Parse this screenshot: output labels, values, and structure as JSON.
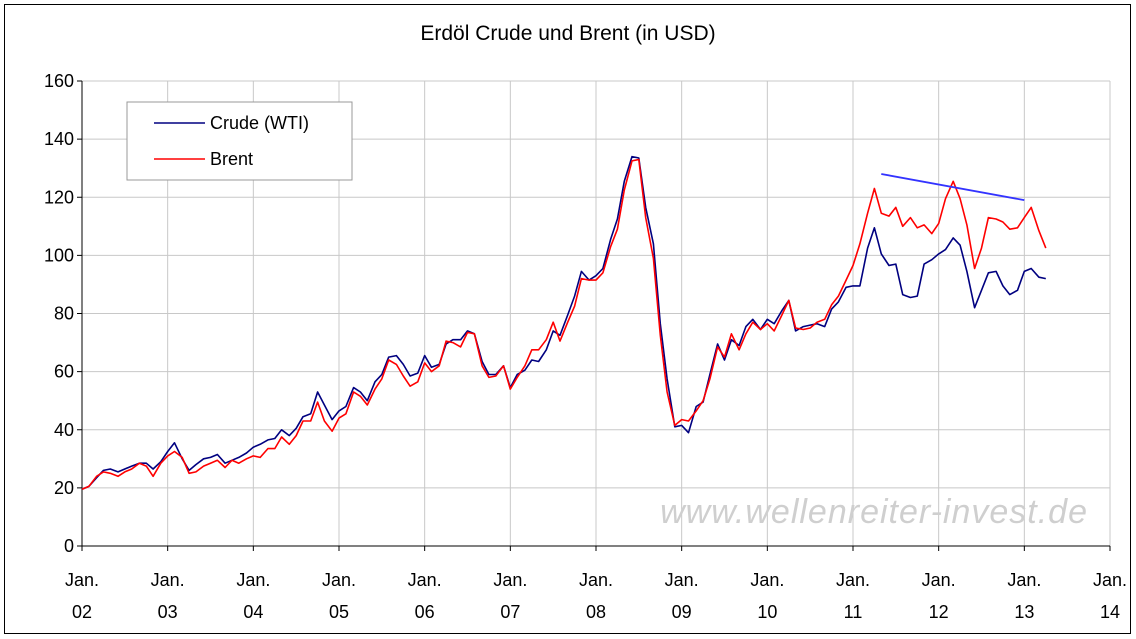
{
  "chart_data": {
    "type": "line",
    "title": "Erdöl Crude und Brent (in USD)",
    "xlabel": "",
    "ylabel": "",
    "ylim": [
      0,
      160
    ],
    "yticks": [
      0,
      20,
      40,
      60,
      80,
      100,
      120,
      140,
      160
    ],
    "xlim": [
      2002,
      2014
    ],
    "xtick_labels": [
      {
        "year": 2002,
        "top": "Jan.",
        "bottom": "02"
      },
      {
        "year": 2003,
        "top": "Jan.",
        "bottom": "03"
      },
      {
        "year": 2004,
        "top": "Jan.",
        "bottom": "04"
      },
      {
        "year": 2005,
        "top": "Jan.",
        "bottom": "05"
      },
      {
        "year": 2006,
        "top": "Jan.",
        "bottom": "06"
      },
      {
        "year": 2007,
        "top": "Jan.",
        "bottom": "07"
      },
      {
        "year": 2008,
        "top": "Jan.",
        "bottom": "08"
      },
      {
        "year": 2009,
        "top": "Jan.",
        "bottom": "09"
      },
      {
        "year": 2010,
        "top": "Jan.",
        "bottom": "10"
      },
      {
        "year": 2011,
        "top": "Jan.",
        "bottom": "11"
      },
      {
        "year": 2012,
        "top": "Jan.",
        "bottom": "12"
      },
      {
        "year": 2013,
        "top": "Jan.",
        "bottom": "13"
      },
      {
        "year": 2014,
        "top": "Jan.",
        "bottom": "14"
      }
    ],
    "grid": true,
    "legend_position": "top-left",
    "series": [
      {
        "name": "Crude (WTI)",
        "color": "#000080",
        "points": [
          [
            2002.0,
            19.5
          ],
          [
            2002.08,
            20.5
          ],
          [
            2002.17,
            23.5
          ],
          [
            2002.25,
            26
          ],
          [
            2002.33,
            26.5
          ],
          [
            2002.42,
            25.5
          ],
          [
            2002.5,
            26.5
          ],
          [
            2002.58,
            27.5
          ],
          [
            2002.67,
            28.5
          ],
          [
            2002.75,
            28.5
          ],
          [
            2002.83,
            26.5
          ],
          [
            2002.92,
            29
          ],
          [
            2003.0,
            32.5
          ],
          [
            2003.08,
            35.5
          ],
          [
            2003.17,
            30
          ],
          [
            2003.25,
            26
          ],
          [
            2003.33,
            28
          ],
          [
            2003.42,
            30
          ],
          [
            2003.5,
            30.5
          ],
          [
            2003.58,
            31.5
          ],
          [
            2003.67,
            28.5
          ],
          [
            2003.75,
            29.5
          ],
          [
            2003.83,
            30.5
          ],
          [
            2003.92,
            32
          ],
          [
            2004.0,
            34
          ],
          [
            2004.08,
            35
          ],
          [
            2004.17,
            36.5
          ],
          [
            2004.25,
            37
          ],
          [
            2004.33,
            40
          ],
          [
            2004.42,
            38
          ],
          [
            2004.5,
            40.5
          ],
          [
            2004.58,
            44.5
          ],
          [
            2004.67,
            45.5
          ],
          [
            2004.75,
            53
          ],
          [
            2004.83,
            48.5
          ],
          [
            2004.92,
            43.5
          ],
          [
            2005.0,
            46.5
          ],
          [
            2005.08,
            48
          ],
          [
            2005.17,
            54.5
          ],
          [
            2005.25,
            53
          ],
          [
            2005.33,
            50
          ],
          [
            2005.42,
            56.5
          ],
          [
            2005.5,
            59
          ],
          [
            2005.58,
            65
          ],
          [
            2005.67,
            65.5
          ],
          [
            2005.75,
            62.5
          ],
          [
            2005.83,
            58.5
          ],
          [
            2005.92,
            59.5
          ],
          [
            2006.0,
            65.5
          ],
          [
            2006.08,
            61.5
          ],
          [
            2006.17,
            62.5
          ],
          [
            2006.25,
            69.5
          ],
          [
            2006.33,
            71
          ],
          [
            2006.42,
            71
          ],
          [
            2006.5,
            74
          ],
          [
            2006.58,
            73
          ],
          [
            2006.67,
            63.5
          ],
          [
            2006.75,
            59
          ],
          [
            2006.83,
            59
          ],
          [
            2006.92,
            62
          ],
          [
            2007.0,
            54.5
          ],
          [
            2007.08,
            59
          ],
          [
            2007.17,
            60.5
          ],
          [
            2007.25,
            64
          ],
          [
            2007.33,
            63.5
          ],
          [
            2007.42,
            67.5
          ],
          [
            2007.5,
            74
          ],
          [
            2007.58,
            72.5
          ],
          [
            2007.67,
            79.5
          ],
          [
            2007.75,
            86
          ],
          [
            2007.83,
            94.5
          ],
          [
            2007.92,
            91.5
          ],
          [
            2008.0,
            93
          ],
          [
            2008.08,
            95.5
          ],
          [
            2008.17,
            105.5
          ],
          [
            2008.25,
            112.5
          ],
          [
            2008.33,
            125.5
          ],
          [
            2008.42,
            134
          ],
          [
            2008.5,
            133.5
          ],
          [
            2008.58,
            116.5
          ],
          [
            2008.67,
            104
          ],
          [
            2008.75,
            76.5
          ],
          [
            2008.83,
            57.5
          ],
          [
            2008.92,
            41
          ],
          [
            2009.0,
            41.5
          ],
          [
            2009.08,
            39
          ],
          [
            2009.17,
            48
          ],
          [
            2009.25,
            49.5
          ],
          [
            2009.33,
            59
          ],
          [
            2009.42,
            69.5
          ],
          [
            2009.5,
            64
          ],
          [
            2009.58,
            71
          ],
          [
            2009.67,
            69
          ],
          [
            2009.75,
            75.5
          ],
          [
            2009.83,
            78
          ],
          [
            2009.92,
            74.5
          ],
          [
            2010.0,
            78
          ],
          [
            2010.08,
            76.5
          ],
          [
            2010.17,
            81
          ],
          [
            2010.25,
            84.5
          ],
          [
            2010.33,
            74
          ],
          [
            2010.42,
            75.5
          ],
          [
            2010.5,
            76
          ],
          [
            2010.58,
            76.5
          ],
          [
            2010.67,
            75.5
          ],
          [
            2010.75,
            81.5
          ],
          [
            2010.83,
            84
          ],
          [
            2010.92,
            89
          ],
          [
            2011.0,
            89.5
          ],
          [
            2011.08,
            89.5
          ],
          [
            2011.17,
            102.5
          ],
          [
            2011.25,
            109.5
          ],
          [
            2011.33,
            100.5
          ],
          [
            2011.42,
            96.5
          ],
          [
            2011.5,
            97
          ],
          [
            2011.58,
            86.5
          ],
          [
            2011.67,
            85.5
          ],
          [
            2011.75,
            86
          ],
          [
            2011.83,
            97
          ],
          [
            2011.92,
            98.5
          ],
          [
            2012.0,
            100.5
          ],
          [
            2012.08,
            102
          ],
          [
            2012.17,
            106
          ],
          [
            2012.25,
            103.5
          ],
          [
            2012.33,
            94.5
          ],
          [
            2012.42,
            82
          ],
          [
            2012.5,
            88
          ],
          [
            2012.58,
            94
          ],
          [
            2012.67,
            94.5
          ],
          [
            2012.75,
            89.5
          ],
          [
            2012.83,
            86.5
          ],
          [
            2012.92,
            88
          ],
          [
            2013.0,
            94.5
          ],
          [
            2013.08,
            95.5
          ],
          [
            2013.17,
            92.5
          ],
          [
            2013.25,
            92
          ]
        ]
      },
      {
        "name": "Brent",
        "color": "#ff0000",
        "points": [
          [
            2002.0,
            19.5
          ],
          [
            2002.08,
            20.5
          ],
          [
            2002.17,
            24
          ],
          [
            2002.25,
            25.5
          ],
          [
            2002.33,
            25
          ],
          [
            2002.42,
            24
          ],
          [
            2002.5,
            25.5
          ],
          [
            2002.58,
            26.5
          ],
          [
            2002.67,
            28.5
          ],
          [
            2002.75,
            27.5
          ],
          [
            2002.83,
            24
          ],
          [
            2002.92,
            28.5
          ],
          [
            2003.0,
            31
          ],
          [
            2003.08,
            32.5
          ],
          [
            2003.17,
            30.5
          ],
          [
            2003.25,
            25
          ],
          [
            2003.33,
            25.5
          ],
          [
            2003.42,
            27.5
          ],
          [
            2003.5,
            28.5
          ],
          [
            2003.58,
            29.5
          ],
          [
            2003.67,
            27
          ],
          [
            2003.75,
            29.5
          ],
          [
            2003.83,
            28.5
          ],
          [
            2003.92,
            30
          ],
          [
            2004.0,
            31
          ],
          [
            2004.08,
            30.5
          ],
          [
            2004.17,
            33.5
          ],
          [
            2004.25,
            33.5
          ],
          [
            2004.33,
            37.5
          ],
          [
            2004.42,
            35
          ],
          [
            2004.5,
            38
          ],
          [
            2004.58,
            43
          ],
          [
            2004.67,
            43
          ],
          [
            2004.75,
            49.5
          ],
          [
            2004.83,
            43
          ],
          [
            2004.92,
            39.5
          ],
          [
            2005.0,
            44
          ],
          [
            2005.08,
            45.5
          ],
          [
            2005.17,
            53
          ],
          [
            2005.25,
            51.5
          ],
          [
            2005.33,
            48.5
          ],
          [
            2005.42,
            54
          ],
          [
            2005.5,
            57.5
          ],
          [
            2005.58,
            64
          ],
          [
            2005.67,
            62.5
          ],
          [
            2005.75,
            58.5
          ],
          [
            2005.83,
            55
          ],
          [
            2005.92,
            56.5
          ],
          [
            2006.0,
            63
          ],
          [
            2006.08,
            60
          ],
          [
            2006.17,
            62
          ],
          [
            2006.25,
            70.5
          ],
          [
            2006.33,
            70
          ],
          [
            2006.42,
            68.5
          ],
          [
            2006.5,
            73.5
          ],
          [
            2006.58,
            73
          ],
          [
            2006.67,
            62
          ],
          [
            2006.75,
            58
          ],
          [
            2006.83,
            58.5
          ],
          [
            2006.92,
            62
          ],
          [
            2007.0,
            54
          ],
          [
            2007.08,
            58
          ],
          [
            2007.17,
            62
          ],
          [
            2007.25,
            67.5
          ],
          [
            2007.33,
            67.5
          ],
          [
            2007.42,
            71
          ],
          [
            2007.5,
            77
          ],
          [
            2007.58,
            70.5
          ],
          [
            2007.67,
            77
          ],
          [
            2007.75,
            82.5
          ],
          [
            2007.83,
            92
          ],
          [
            2007.92,
            91.5
          ],
          [
            2008.0,
            91.5
          ],
          [
            2008.08,
            94
          ],
          [
            2008.17,
            103
          ],
          [
            2008.25,
            109
          ],
          [
            2008.33,
            122.5
          ],
          [
            2008.42,
            132.5
          ],
          [
            2008.5,
            133
          ],
          [
            2008.58,
            113
          ],
          [
            2008.67,
            99
          ],
          [
            2008.75,
            72.5
          ],
          [
            2008.83,
            53
          ],
          [
            2008.92,
            41.5
          ],
          [
            2009.0,
            43.5
          ],
          [
            2009.08,
            43
          ],
          [
            2009.17,
            46.5
          ],
          [
            2009.25,
            50
          ],
          [
            2009.33,
            57.5
          ],
          [
            2009.42,
            68.5
          ],
          [
            2009.5,
            65
          ],
          [
            2009.58,
            73
          ],
          [
            2009.67,
            67.5
          ],
          [
            2009.75,
            73
          ],
          [
            2009.83,
            77
          ],
          [
            2009.92,
            74.5
          ],
          [
            2010.0,
            76.5
          ],
          [
            2010.08,
            74
          ],
          [
            2010.17,
            79.5
          ],
          [
            2010.25,
            84.5
          ],
          [
            2010.33,
            75
          ],
          [
            2010.42,
            74.5
          ],
          [
            2010.5,
            75
          ],
          [
            2010.58,
            77
          ],
          [
            2010.67,
            78
          ],
          [
            2010.75,
            83
          ],
          [
            2010.83,
            86
          ],
          [
            2010.92,
            91.5
          ],
          [
            2011.0,
            96.5
          ],
          [
            2011.08,
            104
          ],
          [
            2011.17,
            114.5
          ],
          [
            2011.25,
            123
          ],
          [
            2011.33,
            114.5
          ],
          [
            2011.42,
            113.5
          ],
          [
            2011.5,
            116.5
          ],
          [
            2011.58,
            110
          ],
          [
            2011.67,
            113
          ],
          [
            2011.75,
            109.5
          ],
          [
            2011.83,
            110.5
          ],
          [
            2011.92,
            107.5
          ],
          [
            2012.0,
            111
          ],
          [
            2012.08,
            119.5
          ],
          [
            2012.17,
            125.5
          ],
          [
            2012.25,
            119.5
          ],
          [
            2012.33,
            110.5
          ],
          [
            2012.42,
            95.5
          ],
          [
            2012.5,
            102.5
          ],
          [
            2012.58,
            113
          ],
          [
            2012.67,
            112.5
          ],
          [
            2012.75,
            111.5
          ],
          [
            2012.83,
            109
          ],
          [
            2012.92,
            109.5
          ],
          [
            2013.0,
            113
          ],
          [
            2013.08,
            116.5
          ],
          [
            2013.17,
            108.5
          ],
          [
            2013.25,
            102.5
          ]
        ]
      }
    ],
    "annotations": [
      {
        "type": "trendline",
        "color": "#3333ff",
        "points": [
          [
            2011.33,
            128
          ],
          [
            2013.0,
            119
          ]
        ]
      }
    ],
    "watermark": "www.wellenreiter-invest.de"
  }
}
